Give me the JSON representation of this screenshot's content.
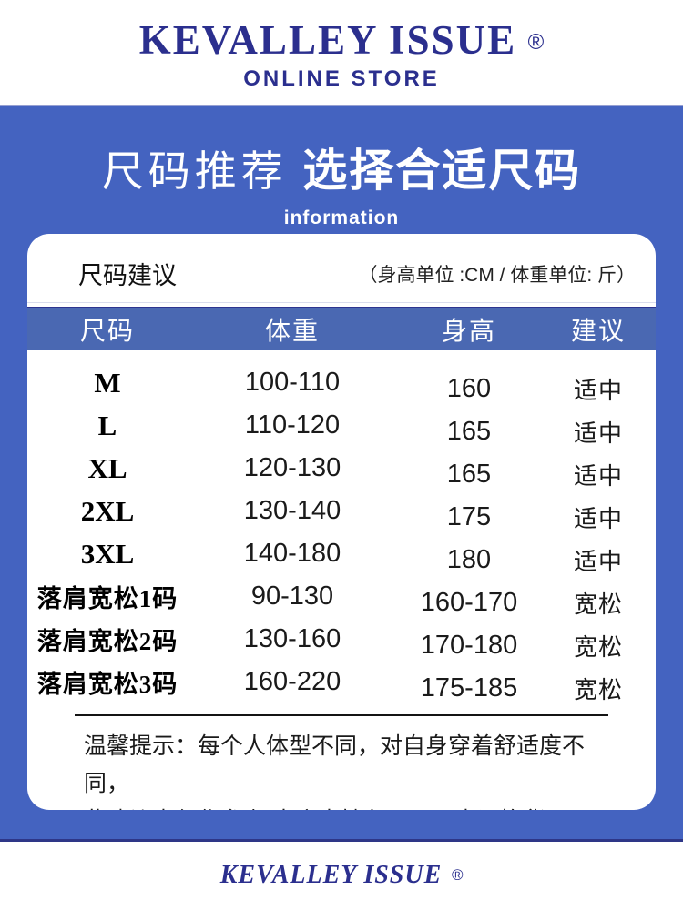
{
  "top": {
    "brand": "KEVALLEY ISSUE",
    "registered": "®",
    "subtitle": "ONLINE STORE"
  },
  "hero": {
    "title_light": "尺码推荐",
    "title_bold": "选择合适尺码",
    "subtitle": "information"
  },
  "size_card": {
    "heading": "尺码建议",
    "units_note": "（身高单位 :CM / 体重单位: 斤）",
    "columns": {
      "size": "尺码",
      "weight": "体重",
      "height": "身高",
      "advice": "建议"
    },
    "rows": [
      {
        "size": "M",
        "weight": "100-110",
        "height": "160",
        "advice": "适中"
      },
      {
        "size": "L",
        "weight": "110-120",
        "height": "165",
        "advice": "适中"
      },
      {
        "size": "XL",
        "weight": "120-130",
        "height": "165",
        "advice": "适中"
      },
      {
        "size": "2XL",
        "weight": "130-140",
        "height": "175",
        "advice": "适中"
      },
      {
        "size": "3XL",
        "weight": "140-180",
        "height": "180",
        "advice": "适中"
      },
      {
        "size": "落肩宽松1码",
        "weight": "90-130",
        "height": "160-170",
        "advice": "宽松"
      },
      {
        "size": "落肩宽松2码",
        "weight": "130-160",
        "height": "170-180",
        "advice": "宽松"
      },
      {
        "size": "落肩宽松3码",
        "weight": "160-220",
        "height": "175-185",
        "advice": "宽松"
      }
    ],
    "notice_line1": "温馨提示：每个人体型不同，对自身穿着舒适度不同，",
    "notice_line2": "此建议表仅作参考 本店支持七天无理由退换货"
  },
  "footer": {
    "brand": "KEVALLEY ISSUE",
    "registered": "®"
  },
  "colors": {
    "brand_navy": "#2B2F8E",
    "background_blue": "#4463C0",
    "table_header_blue": "#4A68B2"
  }
}
